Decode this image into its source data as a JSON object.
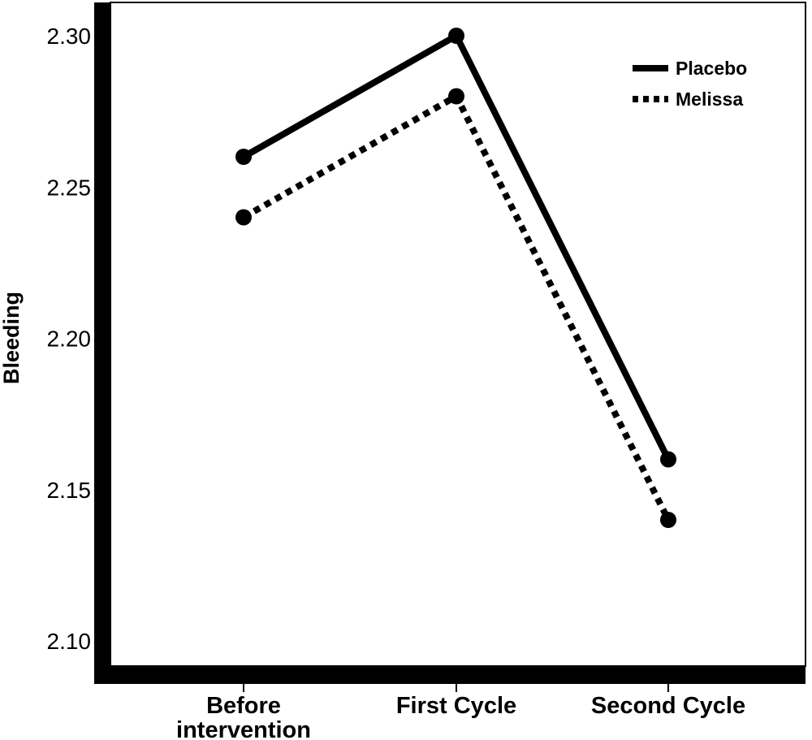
{
  "chart_data": {
    "type": "line",
    "title": "",
    "xlabel": "",
    "ylabel": "Bleeding",
    "categories": [
      "Before intervention",
      "First Cycle",
      "Second Cycle"
    ],
    "category_label_lines": [
      [
        "Before",
        "intervention"
      ],
      [
        "First Cycle"
      ],
      [
        "Second Cycle"
      ]
    ],
    "series": [
      {
        "name": "Placebo",
        "values": [
          2.26,
          2.3,
          2.16
        ],
        "line_style": "solid",
        "color": "#000000"
      },
      {
        "name": "Melissa",
        "values": [
          2.24,
          2.28,
          2.14
        ],
        "line_style": "dotted",
        "color": "#000000"
      }
    ],
    "ylim": [
      2.09,
      2.31
    ],
    "yticks": [
      2.1,
      2.15,
      2.2,
      2.25,
      2.3
    ],
    "ytick_labels": [
      "2.10",
      "2.15",
      "2.20",
      "2.25",
      "2.30"
    ],
    "grid": false,
    "legend_position": "top-right"
  }
}
